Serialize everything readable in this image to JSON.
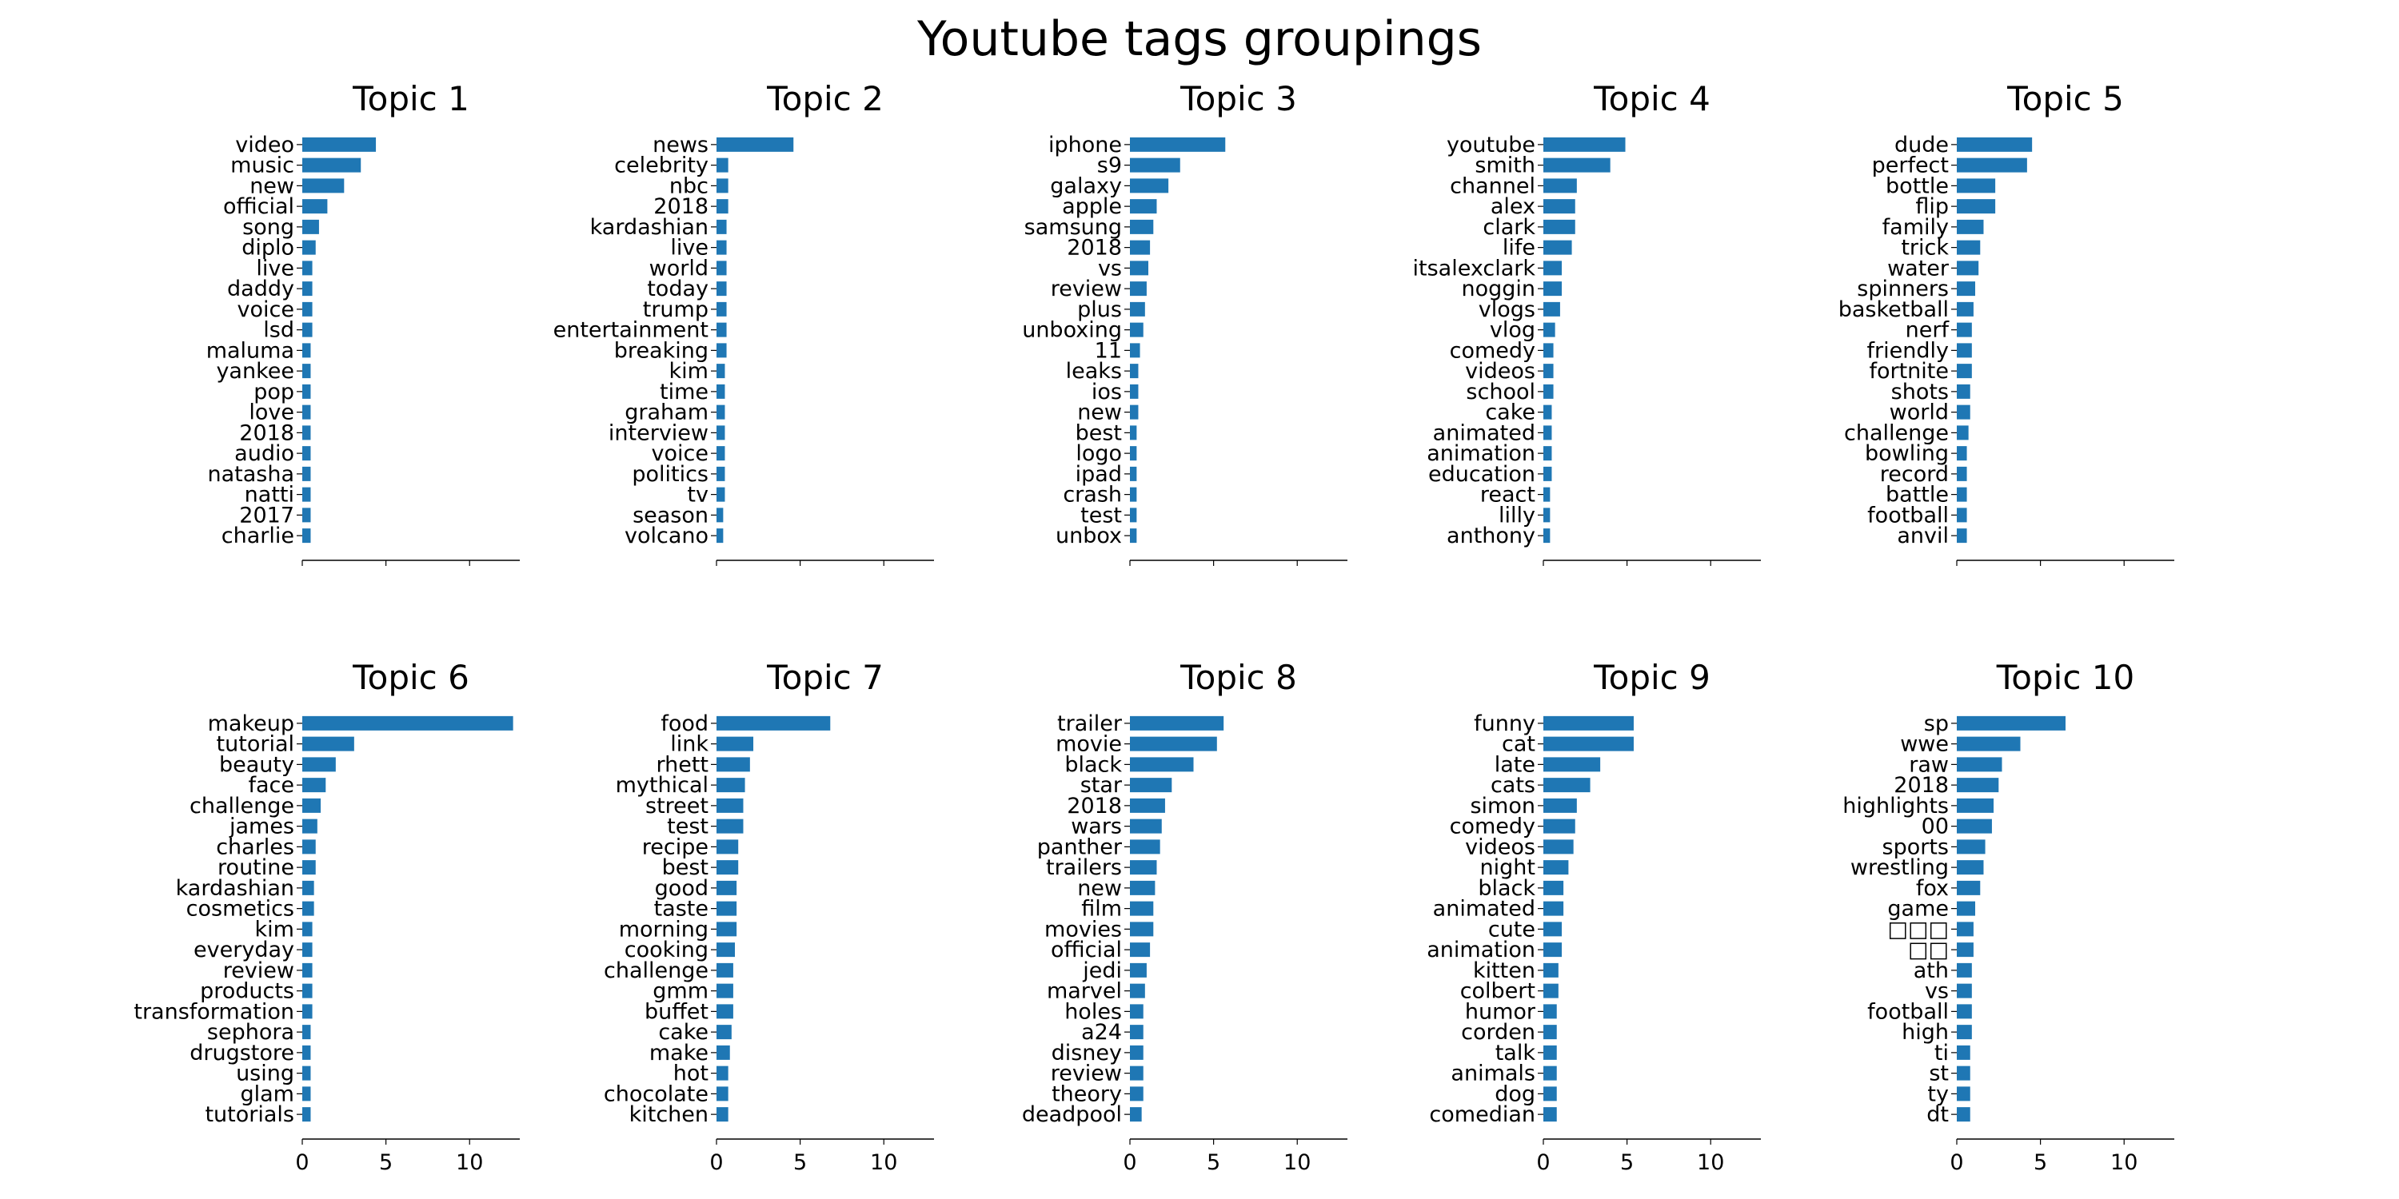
{
  "figure": {
    "title": "Youtube tags groupings"
  },
  "chart_data": [
    {
      "type": "bar",
      "orientation": "horizontal",
      "title": "Topic 1",
      "xlim": [
        0,
        13
      ],
      "xticks": [
        0,
        5,
        10
      ],
      "show_xtick_labels": false,
      "categories": [
        "video",
        "music",
        "new",
        "official",
        "song",
        "diplo",
        "live",
        "daddy",
        "voice",
        "lsd",
        "maluma",
        "yankee",
        "pop",
        "love",
        "2018",
        "audio",
        "natasha",
        "natti",
        "2017",
        "charlie"
      ],
      "values": [
        4.4,
        3.5,
        2.5,
        1.5,
        1.0,
        0.8,
        0.6,
        0.6,
        0.6,
        0.6,
        0.5,
        0.5,
        0.5,
        0.5,
        0.5,
        0.5,
        0.5,
        0.5,
        0.5,
        0.5
      ]
    },
    {
      "type": "bar",
      "orientation": "horizontal",
      "title": "Topic 2",
      "xlim": [
        0,
        13
      ],
      "xticks": [
        0,
        5,
        10
      ],
      "show_xtick_labels": false,
      "categories": [
        "news",
        "celebrity",
        "nbc",
        "2018",
        "kardashian",
        "live",
        "world",
        "today",
        "trump",
        "entertainment",
        "breaking",
        "kim",
        "time",
        "graham",
        "interview",
        "voice",
        "politics",
        "tv",
        "season",
        "volcano"
      ],
      "values": [
        4.6,
        0.7,
        0.7,
        0.7,
        0.6,
        0.6,
        0.6,
        0.6,
        0.6,
        0.6,
        0.6,
        0.5,
        0.5,
        0.5,
        0.5,
        0.5,
        0.5,
        0.5,
        0.4,
        0.4
      ]
    },
    {
      "type": "bar",
      "orientation": "horizontal",
      "title": "Topic 3",
      "xlim": [
        0,
        13
      ],
      "xticks": [
        0,
        5,
        10
      ],
      "show_xtick_labels": false,
      "categories": [
        "iphone",
        "s9",
        "galaxy",
        "apple",
        "samsung",
        "2018",
        "vs",
        "review",
        "plus",
        "unboxing",
        "11",
        "leaks",
        "ios",
        "new",
        "best",
        "logo",
        "ipad",
        "crash",
        "test",
        "unbox"
      ],
      "values": [
        5.7,
        3.0,
        2.3,
        1.6,
        1.4,
        1.2,
        1.1,
        1.0,
        0.9,
        0.8,
        0.6,
        0.5,
        0.5,
        0.5,
        0.4,
        0.4,
        0.4,
        0.4,
        0.4,
        0.4
      ]
    },
    {
      "type": "bar",
      "orientation": "horizontal",
      "title": "Topic 4",
      "xlim": [
        0,
        13
      ],
      "xticks": [
        0,
        5,
        10
      ],
      "show_xtick_labels": false,
      "categories": [
        "youtube",
        "smith",
        "channel",
        "alex",
        "clark",
        "life",
        "itsalexclark",
        "noggin",
        "vlogs",
        "vlog",
        "comedy",
        "videos",
        "school",
        "cake",
        "animated",
        "animation",
        "education",
        "react",
        "lilly",
        "anthony"
      ],
      "values": [
        4.9,
        4.0,
        2.0,
        1.9,
        1.9,
        1.7,
        1.1,
        1.1,
        1.0,
        0.7,
        0.6,
        0.6,
        0.6,
        0.5,
        0.5,
        0.5,
        0.5,
        0.4,
        0.4,
        0.4
      ]
    },
    {
      "type": "bar",
      "orientation": "horizontal",
      "title": "Topic 5",
      "xlim": [
        0,
        13
      ],
      "xticks": [
        0,
        5,
        10
      ],
      "show_xtick_labels": false,
      "categories": [
        "dude",
        "perfect",
        "bottle",
        "flip",
        "family",
        "trick",
        "water",
        "spinners",
        "basketball",
        "nerf",
        "friendly",
        "fortnite",
        "shots",
        "world",
        "challenge",
        "bowling",
        "record",
        "battle",
        "football",
        "anvil"
      ],
      "values": [
        4.5,
        4.2,
        2.3,
        2.3,
        1.6,
        1.4,
        1.3,
        1.1,
        1.0,
        0.9,
        0.9,
        0.9,
        0.8,
        0.8,
        0.7,
        0.6,
        0.6,
        0.6,
        0.6,
        0.6
      ]
    },
    {
      "type": "bar",
      "orientation": "horizontal",
      "title": "Topic 6",
      "xlim": [
        0,
        13
      ],
      "xticks": [
        0,
        5,
        10
      ],
      "show_xtick_labels": true,
      "categories": [
        "makeup",
        "tutorial",
        "beauty",
        "face",
        "challenge",
        "james",
        "charles",
        "routine",
        "kardashian",
        "cosmetics",
        "kim",
        "everyday",
        "review",
        "products",
        "transformation",
        "sephora",
        "drugstore",
        "using",
        "glam",
        "tutorials"
      ],
      "values": [
        12.6,
        3.1,
        2.0,
        1.4,
        1.1,
        0.9,
        0.8,
        0.8,
        0.7,
        0.7,
        0.6,
        0.6,
        0.6,
        0.6,
        0.6,
        0.5,
        0.5,
        0.5,
        0.5,
        0.5
      ]
    },
    {
      "type": "bar",
      "orientation": "horizontal",
      "title": "Topic 7",
      "xlim": [
        0,
        13
      ],
      "xticks": [
        0,
        5,
        10
      ],
      "show_xtick_labels": true,
      "categories": [
        "food",
        "link",
        "rhett",
        "mythical",
        "street",
        "test",
        "recipe",
        "best",
        "good",
        "taste",
        "morning",
        "cooking",
        "challenge",
        "gmm",
        "buffet",
        "cake",
        "make",
        "hot",
        "chocolate",
        "kitchen"
      ],
      "values": [
        6.8,
        2.2,
        2.0,
        1.7,
        1.6,
        1.6,
        1.3,
        1.3,
        1.2,
        1.2,
        1.2,
        1.1,
        1.0,
        1.0,
        1.0,
        0.9,
        0.8,
        0.7,
        0.7,
        0.7
      ]
    },
    {
      "type": "bar",
      "orientation": "horizontal",
      "title": "Topic 8",
      "xlim": [
        0,
        13
      ],
      "xticks": [
        0,
        5,
        10
      ],
      "show_xtick_labels": true,
      "categories": [
        "trailer",
        "movie",
        "black",
        "star",
        "2018",
        "wars",
        "panther",
        "trailers",
        "new",
        "film",
        "movies",
        "official",
        "jedi",
        "marvel",
        "holes",
        "a24",
        "disney",
        "review",
        "theory",
        "deadpool"
      ],
      "values": [
        5.6,
        5.2,
        3.8,
        2.5,
        2.1,
        1.9,
        1.8,
        1.6,
        1.5,
        1.4,
        1.4,
        1.2,
        1.0,
        0.9,
        0.8,
        0.8,
        0.8,
        0.8,
        0.8,
        0.7
      ]
    },
    {
      "type": "bar",
      "orientation": "horizontal",
      "title": "Topic 9",
      "xlim": [
        0,
        13
      ],
      "xticks": [
        0,
        5,
        10
      ],
      "show_xtick_labels": true,
      "categories": [
        "funny",
        "cat",
        "late",
        "cats",
        "simon",
        "comedy",
        "videos",
        "night",
        "black",
        "animated",
        "cute",
        "animation",
        "kitten",
        "colbert",
        "humor",
        "corden",
        "talk",
        "animals",
        "dog",
        "comedian"
      ],
      "values": [
        5.4,
        5.4,
        3.4,
        2.8,
        2.0,
        1.9,
        1.8,
        1.5,
        1.2,
        1.2,
        1.1,
        1.1,
        0.9,
        0.9,
        0.8,
        0.8,
        0.8,
        0.8,
        0.8,
        0.8
      ]
    },
    {
      "type": "bar",
      "orientation": "horizontal",
      "title": "Topic 10",
      "xlim": [
        0,
        13
      ],
      "xticks": [
        0,
        5,
        10
      ],
      "show_xtick_labels": true,
      "categories": [
        "sp",
        "wwe",
        "raw",
        "2018",
        "highlights",
        "00",
        "sports",
        "wrestling",
        "fox",
        "game",
        "□□□",
        "□□",
        "ath",
        "vs",
        "football",
        "high",
        "ti",
        "st",
        "ty",
        "dt"
      ],
      "values": [
        6.5,
        3.8,
        2.7,
        2.5,
        2.2,
        2.1,
        1.7,
        1.6,
        1.4,
        1.1,
        1.0,
        1.0,
        0.9,
        0.9,
        0.9,
        0.9,
        0.8,
        0.8,
        0.8,
        0.8
      ]
    }
  ],
  "colors": {
    "bar": "#1f77b4",
    "axis": "#000000",
    "text": "#000000"
  }
}
